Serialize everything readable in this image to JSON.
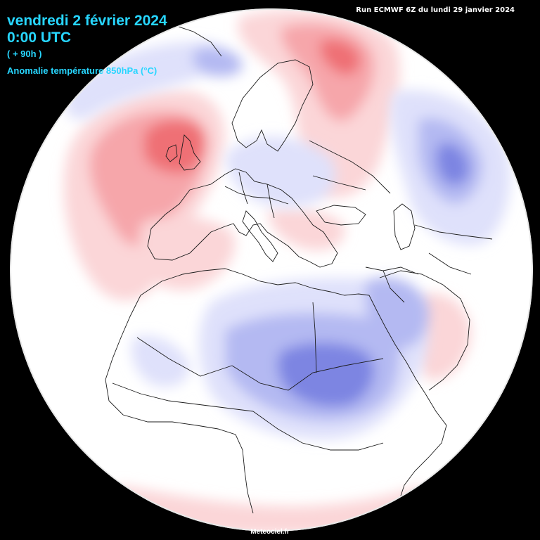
{
  "header": {
    "date": "vendredi 2 février 2024",
    "time": "0:00 UTC",
    "forecast_offset": "( + 90h )",
    "parameter": "Anomalie température 850hPa (°C)",
    "run_info": "Run ECMWF 6Z  du lundi 29 janvier 2024"
  },
  "footer": {
    "credit": "Meteociel.fr"
  },
  "colors": {
    "background": "#000000",
    "title_text": "#27d6ff",
    "neutral": "#ffffff",
    "warm_light": "#fbd6d8",
    "warm_mid": "#f6a6aa",
    "warm_strong": "#ef6f74",
    "cold_light": "#dfe1fb",
    "cold_mid": "#b4b9f2",
    "cold_strong": "#7d85e2",
    "border_lines": "#1c1c1c"
  },
  "map": {
    "projection": "orthographic globe",
    "model": "ECMWF"
  }
}
